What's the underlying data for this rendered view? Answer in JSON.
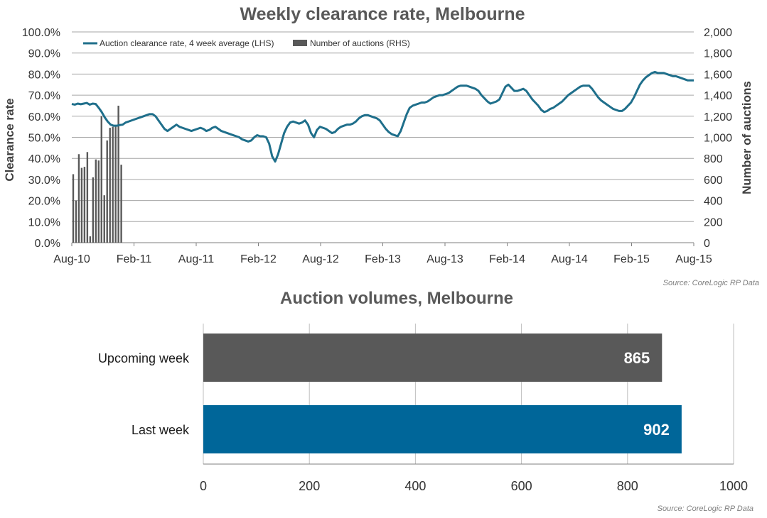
{
  "chart_data": [
    {
      "type": "bar+line",
      "title": "Weekly clearance  rate, Melbourne",
      "ylabel_left": "Clearance rate",
      "ylabel_right": "Number of auctions",
      "ylim_left": [
        0,
        100
      ],
      "ylim_right": [
        0,
        2000
      ],
      "y_ticks_left": [
        "0.0%",
        "10.0%",
        "20.0%",
        "30.0%",
        "40.0%",
        "50.0%",
        "60.0%",
        "70.0%",
        "80.0%",
        "90.0%",
        "100.0%"
      ],
      "y_ticks_right": [
        "0",
        "200",
        "400",
        "600",
        "800",
        "1,000",
        "1,200",
        "1,400",
        "1,600",
        "1,800",
        "2,000"
      ],
      "x_ticks": [
        "Aug-10",
        "Feb-11",
        "Aug-11",
        "Feb-12",
        "Aug-12",
        "Feb-13",
        "Aug-13",
        "Feb-14",
        "Aug-14",
        "Feb-15",
        "Aug-15"
      ],
      "legend_position": "top-left",
      "grid": true,
      "colors": {
        "line": "#1f6f8b",
        "bars": "#595959"
      },
      "series": [
        {
          "name": "Auction clearance rate, 4 week average (LHS)",
          "axis": "left",
          "kind": "line",
          "values": [
            65.8,
            65.5,
            66,
            65.7,
            66,
            66.3,
            65.5,
            66,
            65.8,
            64,
            62,
            59.5,
            57.5,
            56,
            55.5,
            55.5,
            55.8,
            56,
            57,
            57.5,
            58,
            58.5,
            59,
            59.5,
            60,
            60.5,
            61,
            61,
            60,
            58,
            56,
            54,
            53,
            54,
            55,
            56,
            55,
            54.5,
            54,
            53.5,
            53,
            53.5,
            54,
            54.5,
            54,
            53,
            53.5,
            54.5,
            55,
            54,
            53,
            52.5,
            52,
            51.5,
            51,
            50.5,
            50,
            49,
            48.5,
            48,
            48.5,
            50,
            51,
            50.5,
            50.5,
            50,
            47,
            41,
            38.5,
            42,
            47,
            52,
            55,
            57,
            57.5,
            57,
            56.5,
            57,
            58,
            56,
            52,
            50,
            53.5,
            55,
            54.5,
            54,
            53,
            52,
            52.5,
            54,
            55,
            55.5,
            56,
            56,
            56.5,
            57.5,
            59,
            60,
            60.5,
            60.5,
            60,
            59.5,
            59,
            58,
            56,
            54,
            52.5,
            51.5,
            51,
            50.5,
            53,
            57,
            61,
            64,
            65,
            65.5,
            66,
            66.5,
            66.5,
            67,
            68,
            69,
            69.5,
            70,
            70,
            70.5,
            71,
            72,
            73,
            74,
            74.5,
            74.5,
            74.5,
            74,
            73.5,
            73,
            72,
            70,
            68.5,
            67,
            66,
            66.5,
            67,
            68,
            71,
            74,
            75,
            73.5,
            72,
            72,
            72.5,
            73,
            72,
            70,
            68,
            66.5,
            65,
            63,
            62,
            62.5,
            63.5,
            64,
            65,
            66,
            67,
            68.5,
            70,
            71,
            72,
            73,
            74,
            74.5,
            74.5,
            74.5,
            73,
            71,
            69,
            67.5,
            66.5,
            65.5,
            64.5,
            63.5,
            63,
            62.5,
            62.5,
            63.5,
            65,
            66.5,
            69,
            72,
            75,
            77,
            78.5,
            79.5,
            80.5,
            81,
            80.5,
            80.5,
            80.5,
            80,
            79.5,
            79,
            79,
            78.5,
            78,
            77.5,
            77,
            77,
            77
          ]
        },
        {
          "name": "Number of auctions (RHS)",
          "axis": "right",
          "kind": "bar",
          "values": [
            650,
            400,
            840,
            710,
            720,
            860,
            60,
            620,
            790,
            780,
            1200,
            450,
            970,
            1090,
            1100,
            1110,
            1300,
            740,
            0,
            0,
            0,
            0,
            0,
            0,
            0,
            0,
            0,
            0,
            0,
            0,
            0,
            0,
            0,
            0,
            0,
            0,
            0,
            0,
            0,
            0,
            0,
            0,
            0,
            0,
            0,
            0,
            0,
            0,
            0,
            0,
            0,
            0,
            0,
            0,
            0,
            0,
            0,
            0,
            0,
            0,
            0,
            0,
            0,
            0,
            0,
            0,
            0,
            0,
            0,
            0,
            0,
            0,
            0,
            0,
            0,
            0,
            0,
            0,
            0,
            0,
            0,
            0,
            0,
            0,
            0,
            0,
            0,
            0,
            0,
            0,
            0,
            0,
            0,
            0,
            0,
            0,
            0,
            0,
            0,
            0,
            0,
            0,
            0,
            0,
            0,
            0,
            0,
            0,
            0,
            0,
            0,
            0,
            0,
            0,
            0,
            0,
            0,
            0,
            0,
            0,
            0,
            0,
            0,
            0,
            0,
            0,
            0,
            0,
            0,
            0,
            0,
            0,
            0,
            0,
            0,
            0,
            0,
            0,
            0,
            0,
            0,
            0,
            0,
            0,
            0,
            0,
            0,
            0,
            0,
            0,
            0,
            0,
            0,
            0,
            0,
            0,
            0,
            0,
            0,
            0,
            0,
            0,
            0,
            0,
            0,
            0,
            0,
            0,
            0,
            0,
            0,
            0,
            0,
            0,
            0,
            0,
            0,
            0,
            0,
            0,
            0,
            0,
            0,
            0,
            0,
            0,
            0,
            0,
            0,
            0,
            0,
            0,
            0,
            0,
            0,
            0,
            0,
            0,
            0,
            0,
            0,
            0,
            0,
            0,
            0,
            0,
            0,
            0,
            0,
            0,
            0,
            0,
            0,
            0,
            0,
            0,
            0,
            0,
            0,
            0
          ]
        }
      ],
      "source": "Source: CoreLogic  RP Data"
    },
    {
      "type": "bar",
      "orientation": "horizontal",
      "title": "Auction volumes, Melbourne",
      "categories": [
        "Upcoming week",
        "Last week"
      ],
      "values": [
        865,
        902
      ],
      "colors": [
        "#595959",
        "#006699"
      ],
      "xlim": [
        0,
        1000
      ],
      "x_ticks": [
        "0",
        "200",
        "400",
        "600",
        "800",
        "1000"
      ],
      "grid": true,
      "source": "Source: CoreLogic  RP Data"
    }
  ]
}
